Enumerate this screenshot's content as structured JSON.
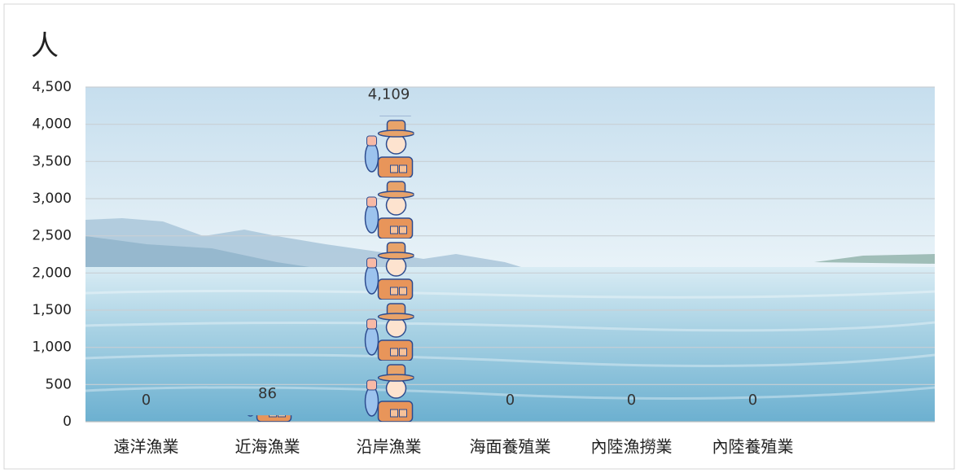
{
  "chart_data": {
    "type": "pictograph",
    "title": "人",
    "categories": [
      "遠洋漁業",
      "近海漁業",
      "沿岸漁業",
      "海面養殖業",
      "內陸漁撈業",
      "內陸養殖業",
      null
    ],
    "values": [
      0,
      86,
      4109,
      0,
      0,
      0,
      null
    ],
    "value_labels": [
      "0",
      "86",
      "4,109",
      "0",
      "0",
      "0",
      null
    ],
    "ylim": [
      0,
      4500
    ],
    "yticks": [
      0,
      500,
      {
        "value": 1000,
        "label": "1,000"
      },
      {
        "value": 1500,
        "label": "1,500"
      },
      {
        "value": 2000,
        "label": "2,000"
      },
      {
        "value": 2500,
        "label": "2,500"
      },
      {
        "value": 3000,
        "label": "3,000"
      },
      {
        "value": 3500,
        "label": "3,500"
      },
      {
        "value": 4000,
        "label": "4,000"
      },
      {
        "value": 4500,
        "label": "4,500"
      }
    ],
    "grid": true
  }
}
